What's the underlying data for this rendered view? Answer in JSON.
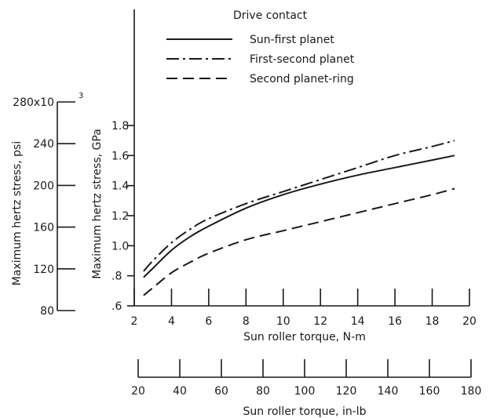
{
  "chart_data": {
    "type": "line",
    "legend": {
      "title": "Drive contact",
      "placement": "top-right"
    },
    "x_axis": {
      "label": "Sun roller torque, N-m",
      "range": [
        2,
        20
      ],
      "ticks": [
        2,
        4,
        6,
        8,
        10,
        12,
        14,
        16,
        18,
        20
      ],
      "tick_labels": [
        "2",
        "4",
        "6",
        "8",
        "10",
        "12",
        "14",
        "16",
        "18",
        "20"
      ]
    },
    "x_axis_secondary": {
      "label": "Sun roller torque, in-lb",
      "range": [
        20,
        180
      ],
      "ticks": [
        20,
        40,
        60,
        80,
        100,
        120,
        140,
        160,
        180
      ],
      "tick_labels": [
        "20",
        "40",
        "60",
        "80",
        "100",
        "120",
        "140",
        "160",
        "180"
      ]
    },
    "y_axis": {
      "label": "Maximum hertz stress, GPa",
      "range": [
        0.6,
        1.8
      ],
      "ticks": [
        0.6,
        0.8,
        1.0,
        1.2,
        1.4,
        1.6,
        1.8
      ],
      "tick_labels": [
        ".6",
        ".8",
        "1.0",
        "1.2",
        "1.4",
        "1.6",
        "1.8"
      ]
    },
    "y_axis_secondary": {
      "label": "Maximum hertz stress, psi",
      "range": [
        80000,
        280000
      ],
      "ticks": [
        80000,
        120000,
        160000,
        200000,
        240000,
        280000
      ],
      "tick_labels": [
        "80",
        "120",
        "160",
        "200",
        "240",
        "280x10"
      ],
      "exponent_label": "3"
    },
    "grid": false,
    "series": [
      {
        "name": "Sun-first planet",
        "dash": "solid",
        "x": [
          2.5,
          3,
          4,
          5,
          6,
          8,
          10,
          12,
          14,
          16,
          18,
          19.2
        ],
        "y": [
          0.79,
          0.85,
          0.97,
          1.06,
          1.13,
          1.25,
          1.34,
          1.41,
          1.47,
          1.52,
          1.57,
          1.6
        ]
      },
      {
        "name": "First-second planet",
        "dash": "dash-dot",
        "x": [
          2.5,
          3,
          4,
          5,
          6,
          8,
          10,
          12,
          14,
          16,
          18,
          19.2
        ],
        "y": [
          0.83,
          0.9,
          1.02,
          1.11,
          1.18,
          1.28,
          1.36,
          1.44,
          1.52,
          1.6,
          1.66,
          1.7
        ]
      },
      {
        "name": "Second planet-ring",
        "dash": "dashed",
        "x": [
          2.5,
          3,
          4,
          5,
          6,
          8,
          10,
          12,
          14,
          16,
          18,
          19.2
        ],
        "y": [
          0.67,
          0.72,
          0.82,
          0.89,
          0.95,
          1.04,
          1.1,
          1.16,
          1.22,
          1.28,
          1.34,
          1.38
        ]
      }
    ]
  }
}
